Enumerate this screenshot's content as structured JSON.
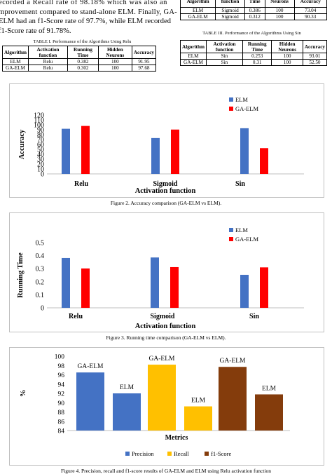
{
  "body_text": [
    "ecorded a Recall rate of 98.18% which was also an",
    "mprovement compared to stand-alone ELM. Finally, GA-",
    "ELM had an f1-Score rate of 97.7%, while ELM recorded",
    "f1-Score rate of 91.78%."
  ],
  "table_top_right": {
    "headers": [
      "Algorithm",
      "function",
      "Time",
      "Neurons",
      "Accuracy"
    ],
    "rows": [
      [
        "ELM",
        "Sigmoid",
        "0.386",
        "100",
        "73.04"
      ],
      [
        "GA-ELM",
        "Sigmoid",
        "0.312",
        "100",
        "90.33"
      ]
    ]
  },
  "table1": {
    "caption": "TABLE I. Performance of the Algorithms Using Relu",
    "headers": [
      "Algorithm",
      "Activation function",
      "Running Time",
      "Hidden Neurons",
      "Accuracy"
    ],
    "rows": [
      [
        "ELM",
        "Relu",
        "0.382",
        "100",
        "91.95"
      ],
      [
        "GA-ELM",
        "Relu",
        "0.302",
        "100",
        "97.68"
      ]
    ]
  },
  "table3": {
    "caption": "TABLE III. Performance of the Algorithms Using Sin",
    "headers": [
      "Algorithm",
      "Activation function",
      "Running Time",
      "Hidden Neurons",
      "Accuracy"
    ],
    "rows": [
      [
        "ELM",
        "Sin",
        "0.253",
        "100",
        "93.01"
      ],
      [
        "GA-ELM",
        "Sin",
        "0.31",
        "100",
        "52.50"
      ]
    ]
  },
  "figure_captions": {
    "fig2": "Figure 2. Accuracy comparison (GA-ELM vs ELM).",
    "fig3": "Figure 3. Running time comparison (GA-ELM vs ELM).",
    "fig4": "Figure 4. Precision, recall and f1-score results of GA-ELM and ELM using Relu activation function"
  },
  "colors": {
    "elm": "#4472c4",
    "gaelm": "#ff0000",
    "precision": "#4472c4",
    "recall": "#ffc000",
    "f1": "#843c0c"
  },
  "chart_data": [
    {
      "type": "bar",
      "categories": [
        "Relu",
        "Sigmoid",
        "Sin"
      ],
      "series": [
        {
          "name": "ELM",
          "values": [
            91.95,
            73.04,
            93.01
          ]
        },
        {
          "name": "GA-ELM",
          "values": [
            97.68,
            90.33,
            52.5
          ]
        }
      ],
      "xlabel": "Activation function",
      "ylabel": "Accuracy",
      "ylim": [
        0,
        120
      ],
      "yticks": [
        "0",
        "10",
        "20",
        "30",
        "40",
        "50",
        "60",
        "70",
        "80",
        "90",
        "100",
        "110",
        "120"
      ],
      "legend": "top-right",
      "grid": false
    },
    {
      "type": "bar",
      "categories": [
        "Relu",
        "Sigmoid",
        "Sin"
      ],
      "series": [
        {
          "name": "ELM",
          "values": [
            0.382,
            0.386,
            0.253
          ]
        },
        {
          "name": "GA-ELM",
          "values": [
            0.302,
            0.312,
            0.31
          ]
        }
      ],
      "xlabel": "Activation function",
      "ylabel": "Running Time",
      "ylim": [
        0,
        0.5
      ],
      "yticks": [
        "0",
        "0.1",
        "0.2",
        "0.3",
        "0.4",
        "0.5"
      ],
      "legend": "top-right",
      "grid": false
    },
    {
      "type": "bar",
      "categories": [
        "Precision",
        "Recall",
        "f1-Score"
      ],
      "series": [
        {
          "name": "GA-ELM",
          "values": [
            96.5,
            98.18,
            97.7
          ]
        },
        {
          "name": "ELM",
          "values": [
            92.0,
            89.2,
            91.78
          ]
        }
      ],
      "bar_labels": [
        "GA-ELM",
        "ELM",
        "GA-ELM",
        "ELM",
        "GA-ELM",
        "ELM"
      ],
      "xlabel": "Metrics",
      "ylabel": "%",
      "ylim": [
        84,
        100
      ],
      "yticks": [
        "84",
        "86",
        "88",
        "90",
        "92",
        "94",
        "96",
        "98",
        "100"
      ],
      "legend": [
        "Precision",
        "Recall",
        "f1-Score"
      ],
      "legend_position": "bottom",
      "grid": false
    }
  ]
}
